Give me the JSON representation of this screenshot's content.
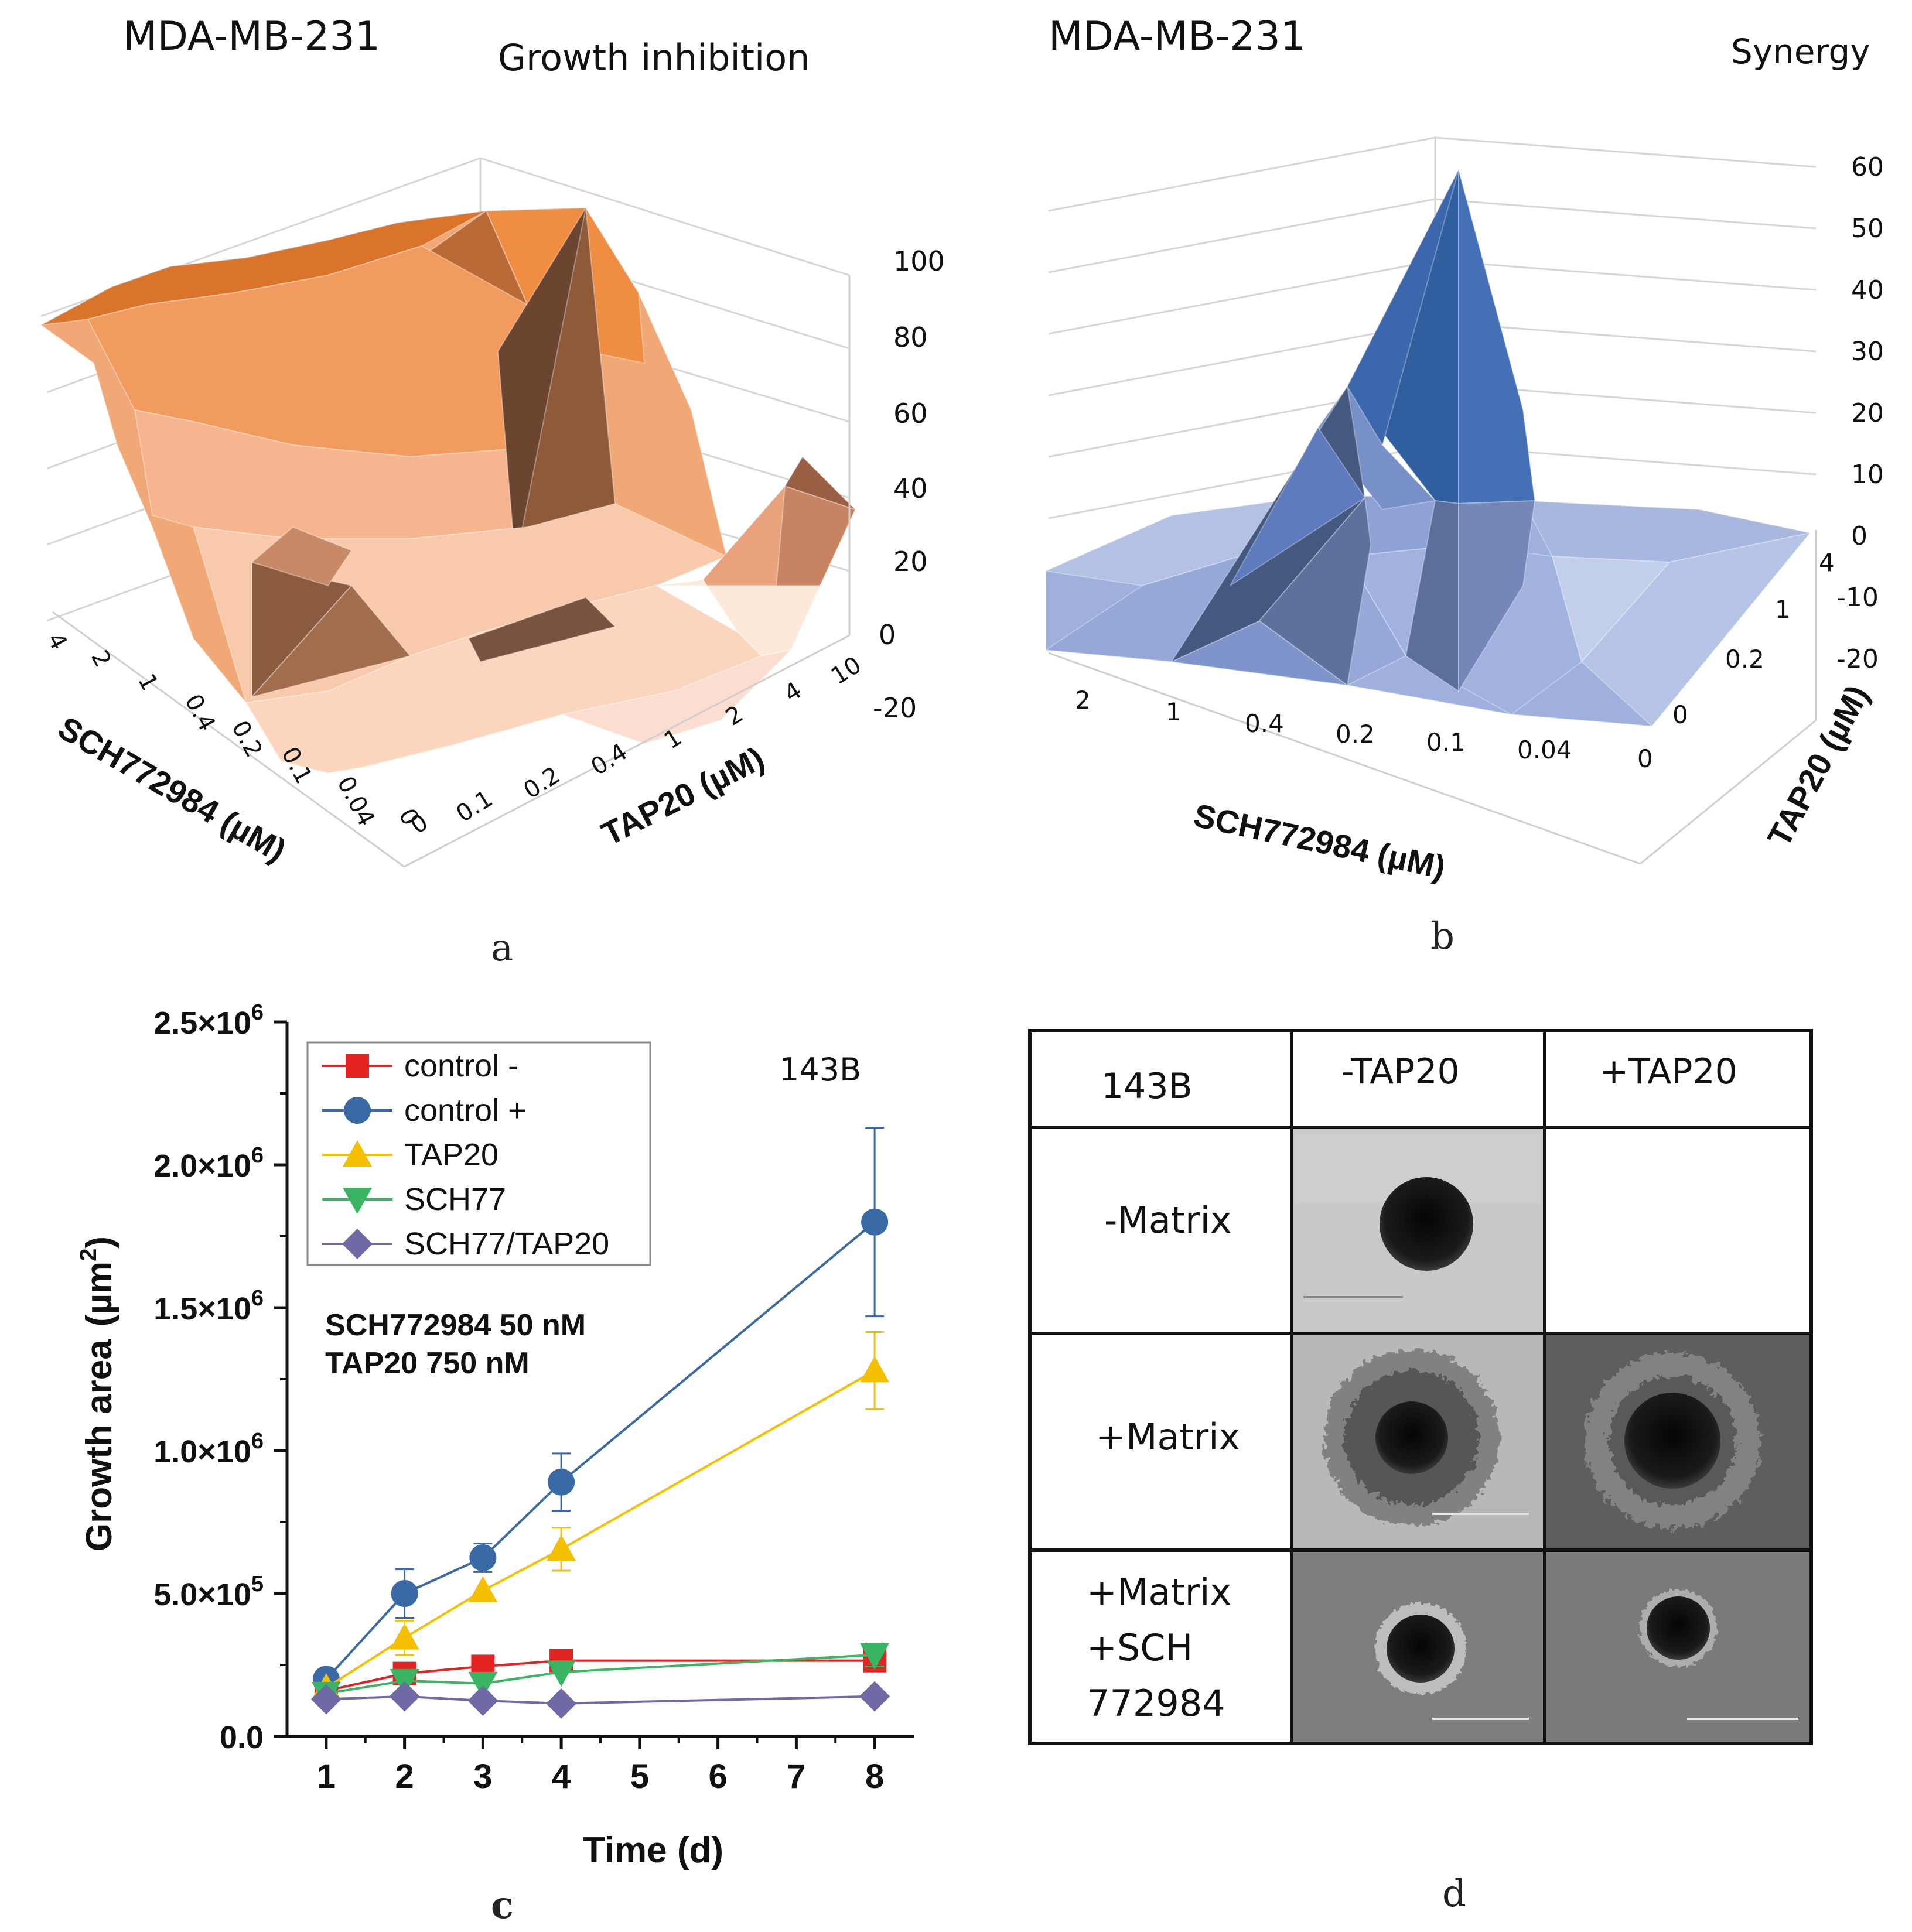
{
  "panel_a": {
    "letter": "a",
    "cell_line": "MDA-MB-231",
    "title": "Growth inhibition",
    "z_ticks": [
      "100",
      "80",
      "60",
      "40",
      "20",
      "0",
      "-20"
    ],
    "sch_ticks": [
      "4",
      "2",
      "1",
      "0.4",
      "0.2",
      "0.1",
      "0.04",
      "0"
    ],
    "tap_ticks": [
      "0",
      "0.1",
      "0.2",
      "0.4",
      "1",
      "2",
      "4",
      "10"
    ],
    "sch_label": "SCH772984 (µM)",
    "tap_label": "TAP20 (µM)",
    "color_top": "#d9742a",
    "color_low": "#fbe6d6"
  },
  "panel_b": {
    "letter": "b",
    "cell_line": "MDA-MB-231",
    "title": "Synergy",
    "z_ticks": [
      "60",
      "50",
      "40",
      "30",
      "20",
      "10",
      "0",
      "-10",
      "-20"
    ],
    "sch_ticks": [
      "2",
      "1",
      "0.4",
      "0.2",
      "0.1",
      "0.04",
      "0"
    ],
    "tap_ticks": [
      "4",
      "1",
      "0.2",
      "0"
    ],
    "sch_label": "SCH772984 (µM)",
    "tap_label": "TAP20 (µM)",
    "color_peak": "#2f5f9f",
    "color_base": "#9fb0dc"
  },
  "chart_data": {
    "type": "line",
    "letter": "c",
    "title": "143B",
    "xlabel": "Time (d)",
    "ylabel": "Growth area",
    "ylabel_unit": "(µm",
    "ylabel_exp": "2",
    "ylabel_close": ")",
    "x_ticks": [
      "1",
      "2",
      "3",
      "4",
      "5",
      "6",
      "7",
      "8"
    ],
    "xlim": [
      0.5,
      8.5
    ],
    "ylim": [
      0,
      2500000
    ],
    "y_ticks": [
      {
        "v": 0,
        "text": "0.0"
      },
      {
        "v": 500000,
        "text": "5.0×10",
        "exp": "5"
      },
      {
        "v": 1000000,
        "text": "1.0×10",
        "exp": "6"
      },
      {
        "v": 1500000,
        "text": "1.5×10",
        "exp": "6"
      },
      {
        "v": 2000000,
        "text": "2.0×10",
        "exp": "6"
      },
      {
        "v": 2500000,
        "text": "2.5×10",
        "exp": "6"
      }
    ],
    "annotation_1": "SCH772984 50 nM",
    "annotation_2": "TAP20 750 nM",
    "legend_position": "top-left",
    "series": [
      {
        "name": "control -",
        "color": "#e32222",
        "marker": "square",
        "x": [
          1,
          2,
          3,
          4,
          8
        ],
        "values": [
          160000,
          220000,
          245000,
          265000,
          265000
        ],
        "err": [
          0,
          25000,
          0,
          0,
          0
        ]
      },
      {
        "name": "control +",
        "color": "#3a6aa6",
        "marker": "circle",
        "x": [
          1,
          2,
          3,
          4,
          8
        ],
        "values": [
          200000,
          500000,
          625000,
          890000,
          1800000
        ],
        "err": [
          0,
          85000,
          50000,
          100000,
          330000
        ]
      },
      {
        "name": "TAP20",
        "color": "#f5c000",
        "marker": "triangle-up",
        "x": [
          1,
          2,
          3,
          4,
          8
        ],
        "values": [
          170000,
          345000,
          510000,
          655000,
          1280000
        ],
        "err": [
          0,
          60000,
          0,
          75000,
          135000
        ]
      },
      {
        "name": "SCH77",
        "color": "#3bb563",
        "marker": "triangle-down",
        "x": [
          1,
          2,
          3,
          4,
          8
        ],
        "values": [
          150000,
          195000,
          185000,
          225000,
          285000
        ],
        "err": [
          0,
          0,
          0,
          0,
          40000
        ]
      },
      {
        "name": "SCH77/TAP20",
        "color": "#6e6aa6",
        "marker": "diamond",
        "x": [
          1,
          2,
          3,
          4,
          8
        ],
        "values": [
          130000,
          140000,
          125000,
          115000,
          140000
        ],
        "err": [
          0,
          0,
          0,
          0,
          0
        ]
      }
    ]
  },
  "panel_d": {
    "letter": "d",
    "corner": "143B",
    "col_1": "-TAP20",
    "col_2": "+TAP20",
    "row_1": "-Matrix",
    "row_2": "+Matrix",
    "row_3_line_1": "+Matrix",
    "row_3_line_2": "+SCH",
    "row_3_line_3": "772984"
  }
}
